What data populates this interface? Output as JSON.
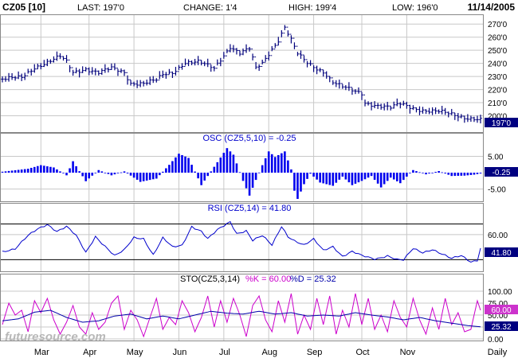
{
  "header": {
    "symbol": "CZ05 [10]",
    "last": "LAST: 197'0",
    "change": "CHANGE: 1'4",
    "high": "HIGH: 199'4",
    "low": "LOW: 196'0",
    "date": "11/14/2005"
  },
  "watermark": "futuresource.com",
  "colors": {
    "price": "#00007b",
    "osc_bars": "#0000ee",
    "rsi": "#0000cc",
    "sto_k": "#cc00cc",
    "sto_d": "#0000aa",
    "tag_bg": "#000080",
    "sto_k_tag_bg": "#cc33cc",
    "grid": "#c8c8c8",
    "label": "#0000cc"
  },
  "chart_data": [
    {
      "type": "ohlc",
      "panel": "price",
      "ylim": [
        190,
        275
      ],
      "y_ticks": [
        "270'0",
        "260'0",
        "250'0",
        "240'0",
        "230'0",
        "220'0",
        "210'0",
        "200'0"
      ],
      "last_tag": "197'0",
      "x_labels": [
        "Mar",
        "Apr",
        "May",
        "Jun",
        "Jul",
        "Aug",
        "Sep",
        "Oct",
        "Nov",
        "Daily"
      ],
      "close_anchors": [
        [
          0,
          228
        ],
        [
          6,
          229
        ],
        [
          10,
          237
        ],
        [
          14,
          241
        ],
        [
          18,
          245
        ],
        [
          20,
          241
        ],
        [
          22,
          233
        ],
        [
          26,
          236
        ],
        [
          30,
          233
        ],
        [
          34,
          236
        ],
        [
          38,
          233
        ],
        [
          40,
          225
        ],
        [
          44,
          225
        ],
        [
          48,
          227
        ],
        [
          50,
          231
        ],
        [
          53,
          233
        ],
        [
          57,
          241
        ],
        [
          61,
          241
        ],
        [
          66,
          236
        ],
        [
          68,
          243
        ],
        [
          71,
          253
        ],
        [
          74,
          248
        ],
        [
          77,
          251
        ],
        [
          79,
          236
        ],
        [
          81,
          240
        ],
        [
          84,
          251
        ],
        [
          86,
          258
        ],
        [
          88,
          268
        ],
        [
          90,
          258
        ],
        [
          92,
          247
        ],
        [
          95,
          240
        ],
        [
          98,
          236
        ],
        [
          100,
          234
        ],
        [
          103,
          226
        ],
        [
          106,
          222
        ],
        [
          109,
          219
        ],
        [
          112,
          217
        ],
        [
          113,
          210
        ],
        [
          117,
          208
        ],
        [
          121,
          206
        ],
        [
          124,
          209
        ],
        [
          128,
          206
        ],
        [
          132,
          204
        ],
        [
          136,
          203
        ],
        [
          140,
          201
        ],
        [
          144,
          199
        ],
        [
          147,
          198
        ],
        [
          149,
          197
        ]
      ]
    },
    {
      "type": "bar",
      "panel": "oscillator",
      "title": "OSC (CZ5,5,10) = -0.25",
      "ylim": [
        -8,
        9
      ],
      "y_ticks": [
        "5.00",
        "-5.00"
      ],
      "last_tag": "-0.25",
      "anchors": [
        [
          0,
          0.3
        ],
        [
          8,
          1.2
        ],
        [
          12,
          2.3
        ],
        [
          16,
          1.6
        ],
        [
          20,
          -0.8
        ],
        [
          22,
          3.5
        ],
        [
          26,
          -2.6
        ],
        [
          30,
          0.8
        ],
        [
          34,
          -0.8
        ],
        [
          38,
          0.4
        ],
        [
          43,
          -2.8
        ],
        [
          48,
          -1.8
        ],
        [
          52,
          2.4
        ],
        [
          55,
          5.8
        ],
        [
          58,
          4.5
        ],
        [
          62,
          -3.8
        ],
        [
          67,
          3.2
        ],
        [
          70,
          7.5
        ],
        [
          72,
          5.5
        ],
        [
          75,
          -2.5
        ],
        [
          77,
          -7.0
        ],
        [
          79,
          -2.2
        ],
        [
          81,
          2.3
        ],
        [
          83,
          6.5
        ],
        [
          85,
          4.8
        ],
        [
          88,
          6.5
        ],
        [
          90,
          1.0
        ],
        [
          91,
          -5.5
        ],
        [
          92,
          -8.0
        ],
        [
          94,
          -3.5
        ],
        [
          96,
          -0.3
        ],
        [
          99,
          -3.0
        ],
        [
          103,
          -4.0
        ],
        [
          106,
          -1.2
        ],
        [
          109,
          -3.8
        ],
        [
          112,
          -2.5
        ],
        [
          115,
          -1.0
        ],
        [
          118,
          -4.5
        ],
        [
          121,
          -1.5
        ],
        [
          124,
          -3.2
        ],
        [
          128,
          0.8
        ],
        [
          132,
          -0.5
        ],
        [
          136,
          0.5
        ],
        [
          140,
          -1.0
        ],
        [
          144,
          -0.9
        ],
        [
          147,
          -0.6
        ],
        [
          149,
          -0.25
        ]
      ]
    },
    {
      "type": "line",
      "panel": "rsi",
      "title": "RSI (CZ5,14) = 41.80",
      "ylim": [
        12,
        90
      ],
      "y_ticks": [
        "60.00"
      ],
      "reference_lines": [
        75,
        25
      ],
      "last_tag": "41.80",
      "anchors": [
        [
          0,
          37
        ],
        [
          4,
          40
        ],
        [
          8,
          58
        ],
        [
          11,
          68
        ],
        [
          14,
          75
        ],
        [
          17,
          65
        ],
        [
          20,
          71
        ],
        [
          23,
          58
        ],
        [
          26,
          35
        ],
        [
          29,
          58
        ],
        [
          32,
          44
        ],
        [
          35,
          30
        ],
        [
          38,
          38
        ],
        [
          41,
          56
        ],
        [
          44,
          55
        ],
        [
          47,
          32
        ],
        [
          50,
          55
        ],
        [
          53,
          42
        ],
        [
          56,
          45
        ],
        [
          59,
          72
        ],
        [
          62,
          65
        ],
        [
          64,
          54
        ],
        [
          67,
          66
        ],
        [
          71,
          78
        ],
        [
          73,
          62
        ],
        [
          76,
          66
        ],
        [
          78,
          52
        ],
        [
          81,
          58
        ],
        [
          84,
          45
        ],
        [
          87,
          72
        ],
        [
          89,
          58
        ],
        [
          91,
          52
        ],
        [
          94,
          45
        ],
        [
          97,
          53
        ],
        [
          100,
          38
        ],
        [
          103,
          44
        ],
        [
          106,
          30
        ],
        [
          109,
          36
        ],
        [
          112,
          30
        ],
        [
          116,
          26
        ],
        [
          120,
          31
        ],
        [
          123,
          25
        ],
        [
          125,
          24
        ],
        [
          128,
          40
        ],
        [
          131,
          35
        ],
        [
          134,
          40
        ],
        [
          137,
          33
        ],
        [
          140,
          26
        ],
        [
          143,
          30
        ],
        [
          146,
          22
        ],
        [
          148,
          25
        ],
        [
          149,
          41.8
        ]
      ]
    },
    {
      "type": "line",
      "panel": "stochastic",
      "title": "STO(CZ5,3,14)",
      "k_label": "%K = 60.00",
      "d_label": "%D = 25.32",
      "ylim": [
        0,
        100
      ],
      "y_ticks": [
        "100.00",
        "75.00",
        "50.00",
        "25.00",
        "0.00"
      ],
      "k_tag": "60.00",
      "d_tag": "25.32",
      "series": [
        {
          "key": "k",
          "anchors": [
            [
              0,
              30
            ],
            [
              2,
              75
            ],
            [
              4,
              50
            ],
            [
              6,
              60
            ],
            [
              8,
              15
            ],
            [
              10,
              80
            ],
            [
              12,
              55
            ],
            [
              14,
              85
            ],
            [
              16,
              40
            ],
            [
              18,
              10
            ],
            [
              20,
              35
            ],
            [
              22,
              70
            ],
            [
              24,
              25
            ],
            [
              26,
              10
            ],
            [
              28,
              55
            ],
            [
              30,
              20
            ],
            [
              32,
              35
            ],
            [
              34,
              75
            ],
            [
              36,
              90
            ],
            [
              38,
              20
            ],
            [
              40,
              60
            ],
            [
              42,
              40
            ],
            [
              44,
              5
            ],
            [
              46,
              45
            ],
            [
              48,
              85
            ],
            [
              50,
              20
            ],
            [
              52,
              45
            ],
            [
              54,
              30
            ],
            [
              56,
              80
            ],
            [
              58,
              55
            ],
            [
              60,
              15
            ],
            [
              62,
              45
            ],
            [
              64,
              90
            ],
            [
              66,
              25
            ],
            [
              68,
              80
            ],
            [
              70,
              35
            ],
            [
              72,
              85
            ],
            [
              74,
              50
            ],
            [
              76,
              5
            ],
            [
              78,
              70
            ],
            [
              80,
              90
            ],
            [
              82,
              40
            ],
            [
              84,
              15
            ],
            [
              86,
              80
            ],
            [
              88,
              35
            ],
            [
              90,
              95
            ],
            [
              92,
              10
            ],
            [
              94,
              50
            ],
            [
              96,
              20
            ],
            [
              98,
              85
            ],
            [
              100,
              30
            ],
            [
              102,
              90
            ],
            [
              104,
              10
            ],
            [
              106,
              60
            ],
            [
              108,
              25
            ],
            [
              110,
              95
            ],
            [
              112,
              30
            ],
            [
              114,
              85
            ],
            [
              116,
              20
            ],
            [
              118,
              50
            ],
            [
              120,
              15
            ],
            [
              122,
              80
            ],
            [
              124,
              45
            ],
            [
              126,
              25
            ],
            [
              128,
              85
            ],
            [
              130,
              40
            ],
            [
              132,
              10
            ],
            [
              134,
              65
            ],
            [
              136,
              20
            ],
            [
              138,
              85
            ],
            [
              140,
              30
            ],
            [
              142,
              55
            ],
            [
              144,
              15
            ],
            [
              146,
              20
            ],
            [
              148,
              80
            ],
            [
              149,
              60
            ]
          ]
        },
        {
          "key": "d",
          "anchors": [
            [
              0,
              38
            ],
            [
              5,
              42
            ],
            [
              10,
              56
            ],
            [
              15,
              60
            ],
            [
              20,
              45
            ],
            [
              25,
              35
            ],
            [
              30,
              38
            ],
            [
              35,
              48
            ],
            [
              40,
              52
            ],
            [
              45,
              42
            ],
            [
              50,
              48
            ],
            [
              55,
              42
            ],
            [
              60,
              50
            ],
            [
              65,
              58
            ],
            [
              70,
              54
            ],
            [
              75,
              52
            ],
            [
              80,
              58
            ],
            [
              85,
              52
            ],
            [
              90,
              55
            ],
            [
              95,
              48
            ],
            [
              100,
              50
            ],
            [
              105,
              48
            ],
            [
              110,
              55
            ],
            [
              115,
              50
            ],
            [
              120,
              46
            ],
            [
              125,
              40
            ],
            [
              130,
              45
            ],
            [
              135,
              38
            ],
            [
              140,
              33
            ],
            [
              145,
              28
            ],
            [
              149,
              25.32
            ]
          ]
        }
      ]
    }
  ]
}
